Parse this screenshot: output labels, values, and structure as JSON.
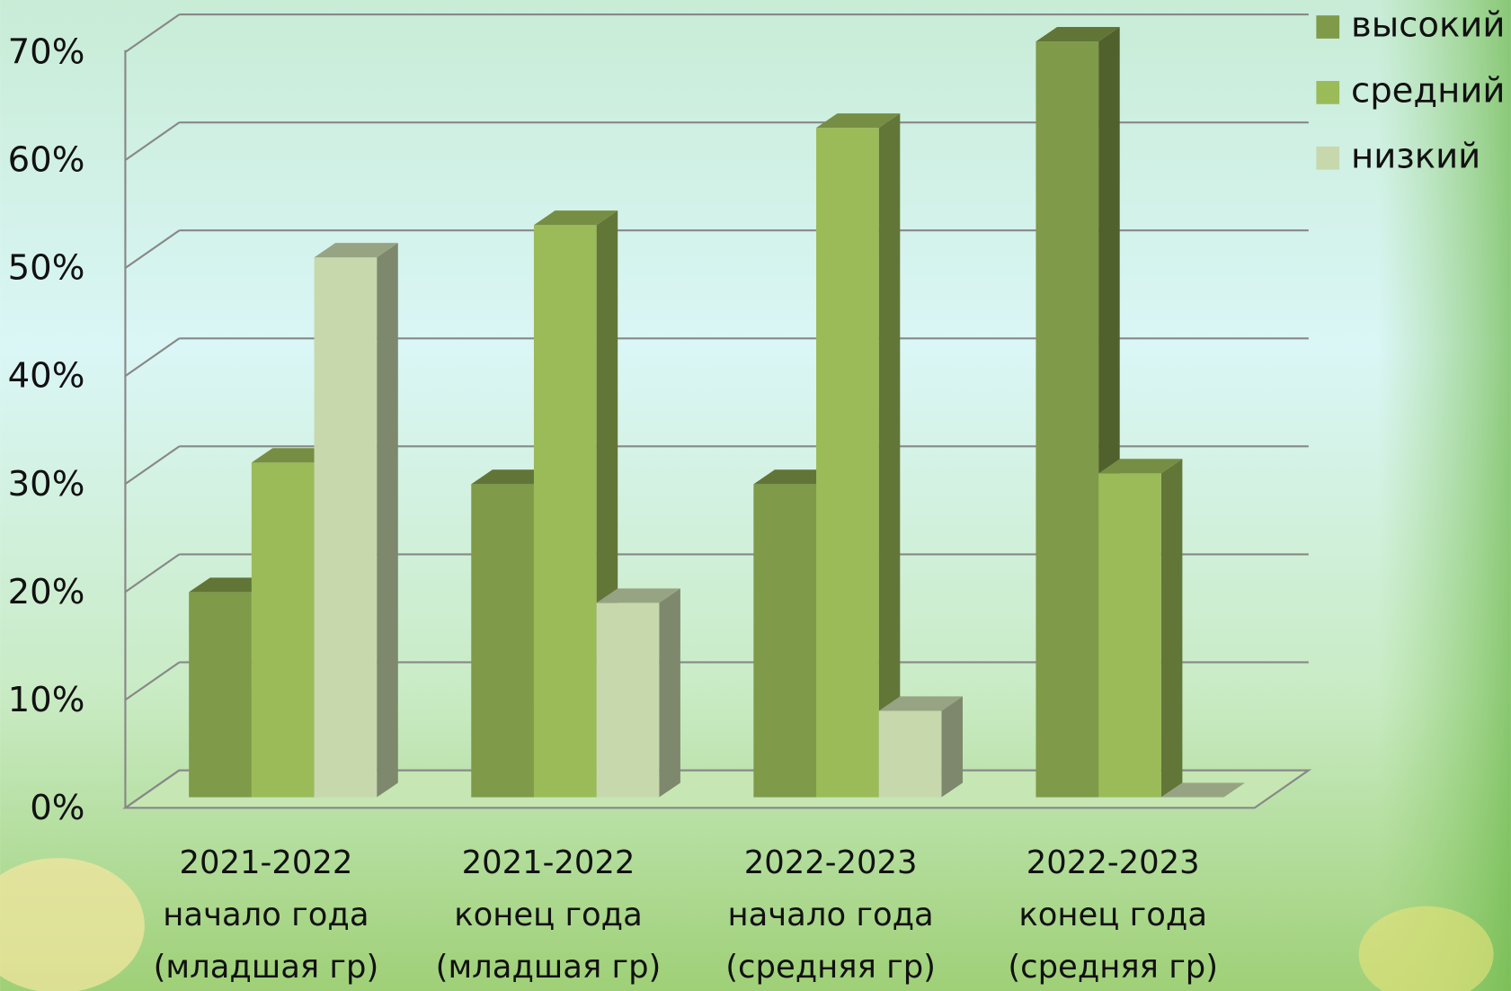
{
  "chart_data": {
    "type": "bar3d",
    "categories": [
      "2021-2022\nначало года\n(младшая гр)",
      "2021-2022\nконец года\n(младшая гр)",
      "2022-2023\nначало года\n(средняя гр)",
      "2022-2023\nконец года\n(средняя гр)"
    ],
    "series": [
      {
        "name": "высокий",
        "color": "#7f9a48",
        "values": [
          19,
          29,
          29,
          70
        ]
      },
      {
        "name": "средний",
        "color": "#9bbb59",
        "values": [
          31,
          53,
          62,
          30
        ]
      },
      {
        "name": "низкий",
        "color": "#c7d8ad",
        "values": [
          50,
          18,
          8,
          0
        ]
      }
    ],
    "ylim": [
      0,
      70
    ],
    "yticks": [
      {
        "value": 0,
        "label": "0%"
      },
      {
        "value": 10,
        "label": "10%"
      },
      {
        "value": 20,
        "label": "20%"
      },
      {
        "value": 30,
        "label": "30%"
      },
      {
        "value": 40,
        "label": "40%"
      },
      {
        "value": 50,
        "label": "50%"
      },
      {
        "value": 60,
        "label": "60%"
      },
      {
        "value": 70,
        "label": "70%"
      }
    ],
    "grid": true,
    "legend": "top-right"
  }
}
